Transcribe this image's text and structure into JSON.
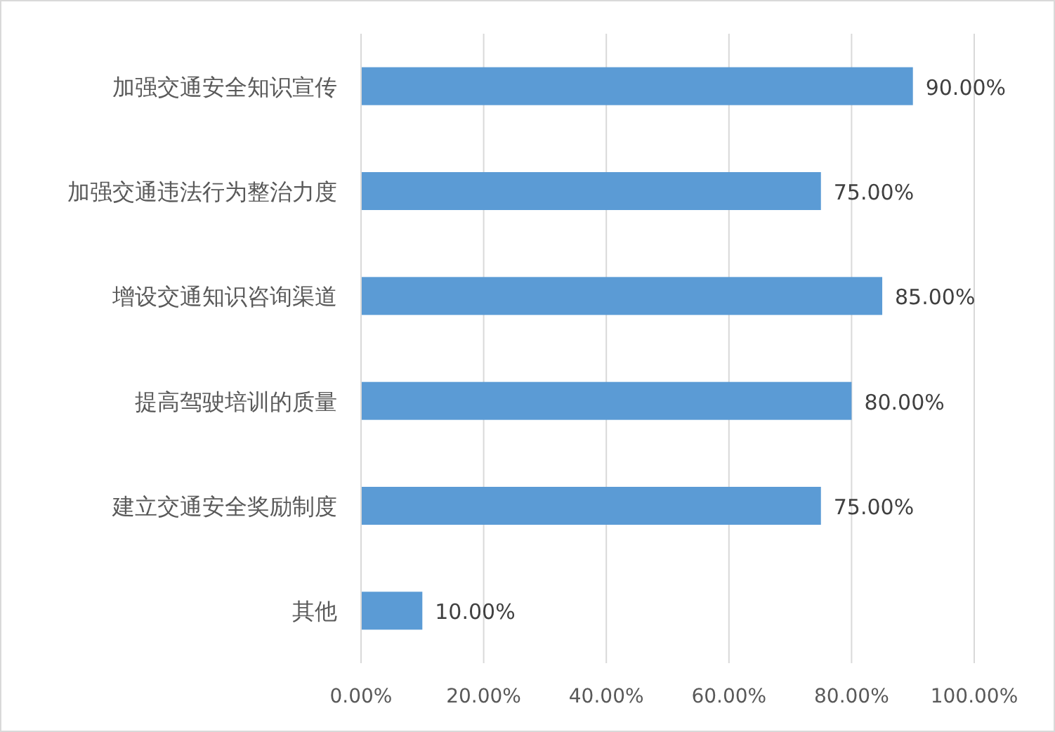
{
  "chart_data": {
    "type": "bar",
    "orientation": "horizontal",
    "categories": [
      "加强交通安全知识宣传",
      "加强交通违法行为整治力度",
      "增设交通知识咨询渠道",
      "提高驾驶培训的质量",
      "建立交通安全奖励制度",
      "其他"
    ],
    "values": [
      90,
      75,
      85,
      80,
      75,
      10
    ],
    "value_labels": [
      "90.00%",
      "75.00%",
      "85.00%",
      "80.00%",
      "75.00%",
      "10.00%"
    ],
    "color": "#5b9bd5",
    "xlim": [
      0,
      100
    ],
    "xticks": [
      {
        "value": 0,
        "label": "0.00%"
      },
      {
        "value": 20,
        "label": "20.00%"
      },
      {
        "value": 40,
        "label": "40.00%"
      },
      {
        "value": 60,
        "label": "60.00%"
      },
      {
        "value": 80,
        "label": "80.00%"
      },
      {
        "value": 100,
        "label": "100.00%"
      }
    ],
    "grid": "x"
  }
}
